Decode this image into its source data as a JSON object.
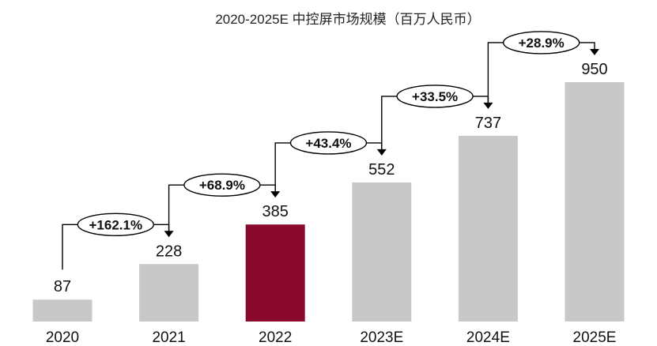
{
  "chart_data": {
    "type": "bar",
    "title": "2020-2025E 中控屏市场规模（百万人民币）",
    "xlabel": "",
    "ylabel": "",
    "categories": [
      "2020",
      "2021",
      "2022",
      "2023E",
      "2024E",
      "2025E"
    ],
    "values": [
      87,
      228,
      385,
      552,
      737,
      950
    ],
    "highlight_index": 2,
    "growth_labels": [
      "+162.1%",
      "+68.9%",
      "+43.4%",
      "+33.5%",
      "+28.9%"
    ],
    "ylim": [
      0,
      1000
    ],
    "grid": false,
    "colors": {
      "bar": "#c8c8c8",
      "highlight": "#8a0a2e",
      "arrow": "#000000"
    }
  }
}
